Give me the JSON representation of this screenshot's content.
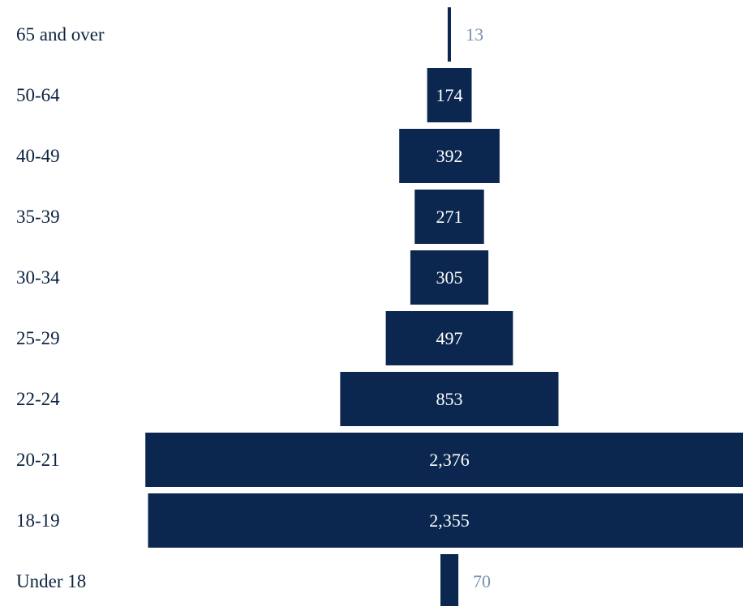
{
  "chart_data": {
    "type": "bar",
    "orientation": "horizontal-centered",
    "title": "",
    "xlabel": "",
    "ylabel": "",
    "grid": false,
    "legend": "none",
    "bar_color": "#0b2750",
    "inside_label_color": "#ffffff",
    "outside_label_color": "#7a8fb0",
    "category_label_color": "#0b2240",
    "categories": [
      "65 and over",
      "50-64",
      "40-49",
      "35-39",
      "30-34",
      "25-29",
      "22-24",
      "20-21",
      "18-19",
      "Under 18"
    ],
    "values": [
      13,
      174,
      392,
      271,
      305,
      497,
      853,
      2376,
      2355,
      70
    ],
    "value_labels": [
      "13",
      "174",
      "392",
      "271",
      "305",
      "497",
      "853",
      "2,376",
      "2,355",
      "70"
    ]
  }
}
